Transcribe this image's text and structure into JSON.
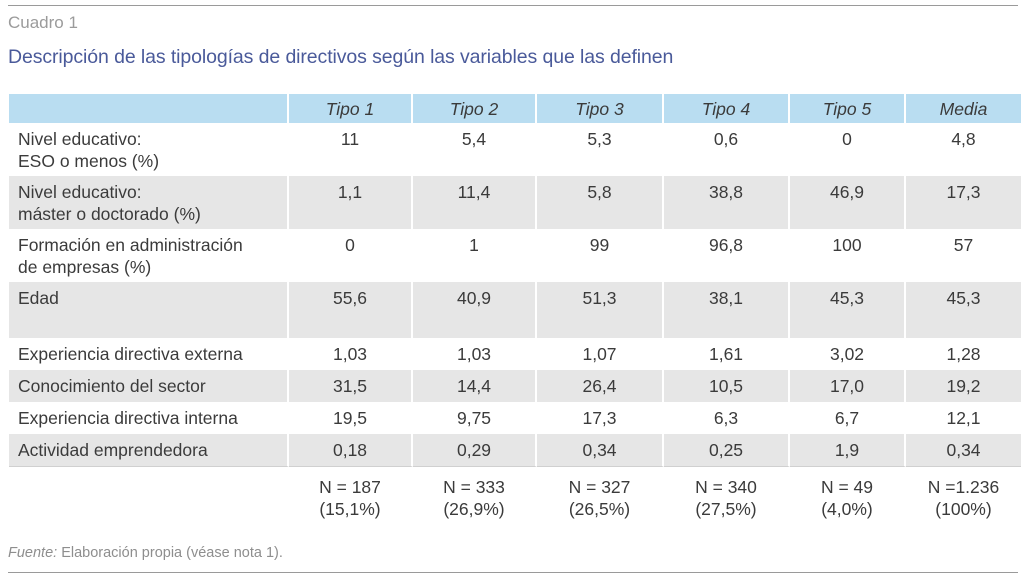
{
  "header": {
    "label": "Cuadro 1",
    "title": "Descripción de las tipologías de directivos según las variables que las definen"
  },
  "table": {
    "columns": [
      "Tipo 1",
      "Tipo 2",
      "Tipo 3",
      "Tipo 4",
      "Tipo 5",
      "Media"
    ],
    "rows": [
      {
        "label_1": "Nivel educativo:",
        "label_2": "ESO o menos (%)",
        "values": [
          "11",
          "5,4",
          "5,3",
          "0,6",
          "0",
          "4,8"
        ]
      },
      {
        "label_1": "Nivel educativo:",
        "label_2": "máster o doctorado (%)",
        "values": [
          "1,1",
          "11,4",
          "5,8",
          "38,8",
          "46,9",
          "17,3"
        ]
      },
      {
        "label_1": "Formación en administración",
        "label_2": "de empresas (%)",
        "values": [
          "0",
          "1",
          "99",
          "96,8",
          "100",
          "57"
        ]
      },
      {
        "label_1": "Edad",
        "label_2": "",
        "values": [
          "55,6",
          "40,9",
          "51,3",
          "38,1",
          "45,3",
          "45,3"
        ]
      },
      {
        "label_1": "Experiencia directiva externa",
        "label_2": "",
        "values": [
          "1,03",
          "1,03",
          "1,07",
          "1,61",
          "3,02",
          "1,28"
        ]
      },
      {
        "label_1": "Conocimiento del sector",
        "label_2": "",
        "values": [
          "31,5",
          "14,4",
          "26,4",
          "10,5",
          "17,0",
          "19,2"
        ]
      },
      {
        "label_1": "Experiencia directiva interna",
        "label_2": "",
        "values": [
          "19,5",
          "9,75",
          "17,3",
          "6,3",
          "6,7",
          "12,1"
        ]
      },
      {
        "label_1": "Actividad emprendedora",
        "label_2": "",
        "values": [
          "0,18",
          "0,29",
          "0,34",
          "0,25",
          "1,9",
          "0,34"
        ]
      }
    ],
    "totals": [
      {
        "n": "N = 187",
        "pct": "(15,1%)"
      },
      {
        "n": "N = 333",
        "pct": "(26,9%)"
      },
      {
        "n": "N = 327",
        "pct": "(26,5%)"
      },
      {
        "n": "N = 340",
        "pct": "(27,5%)"
      },
      {
        "n": "N = 49",
        "pct": "(4,0%)"
      },
      {
        "n": "N =1.236",
        "pct": "(100%)"
      }
    ]
  },
  "source": {
    "label": "Fuente:",
    "text": " Elaboración propia (véase nota 1)."
  }
}
